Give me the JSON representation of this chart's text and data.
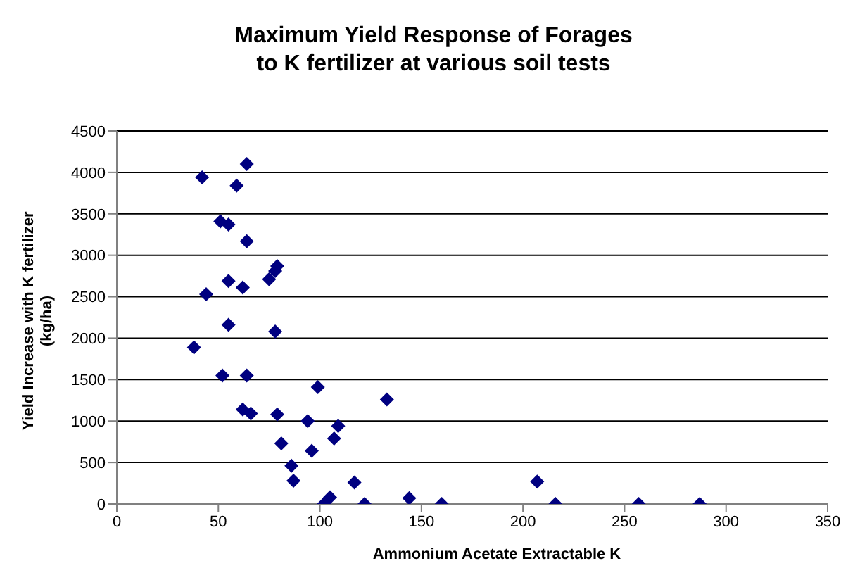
{
  "chart_data": {
    "type": "scatter",
    "title": "Maximum Yield Response of Forages\nto K fertilizer at various soil tests",
    "xlabel": "Ammonium Acetate Extractable K",
    "ylabel": "Yield Increase with K fertilizer\n(kg/ha)",
    "color": "#000080",
    "marker": "diamond",
    "grid": "y",
    "xlim": [
      0,
      350
    ],
    "xticks": [
      0,
      50,
      100,
      150,
      200,
      250,
      300,
      350
    ],
    "ylim": [
      0,
      4500
    ],
    "yticks": [
      0,
      500,
      1000,
      1500,
      2000,
      2500,
      3000,
      3500,
      4000,
      4500
    ],
    "x": [
      64,
      42,
      59,
      51,
      55,
      64,
      79,
      78,
      75,
      55,
      62,
      44,
      55,
      38,
      78,
      52,
      64,
      99,
      133,
      62,
      66,
      79,
      94,
      109,
      81,
      107,
      96,
      86,
      87,
      117,
      105,
      102,
      122,
      144,
      160,
      207,
      216,
      257,
      287
    ],
    "values": [
      4100,
      3940,
      3840,
      3410,
      3370,
      3170,
      2870,
      2810,
      2710,
      2690,
      2610,
      2530,
      2160,
      1890,
      2080,
      1550,
      1550,
      1410,
      1260,
      1140,
      1090,
      1080,
      1000,
      940,
      730,
      790,
      640,
      460,
      280,
      260,
      80,
      0,
      0,
      70,
      0,
      270,
      0,
      0,
      0
    ]
  }
}
